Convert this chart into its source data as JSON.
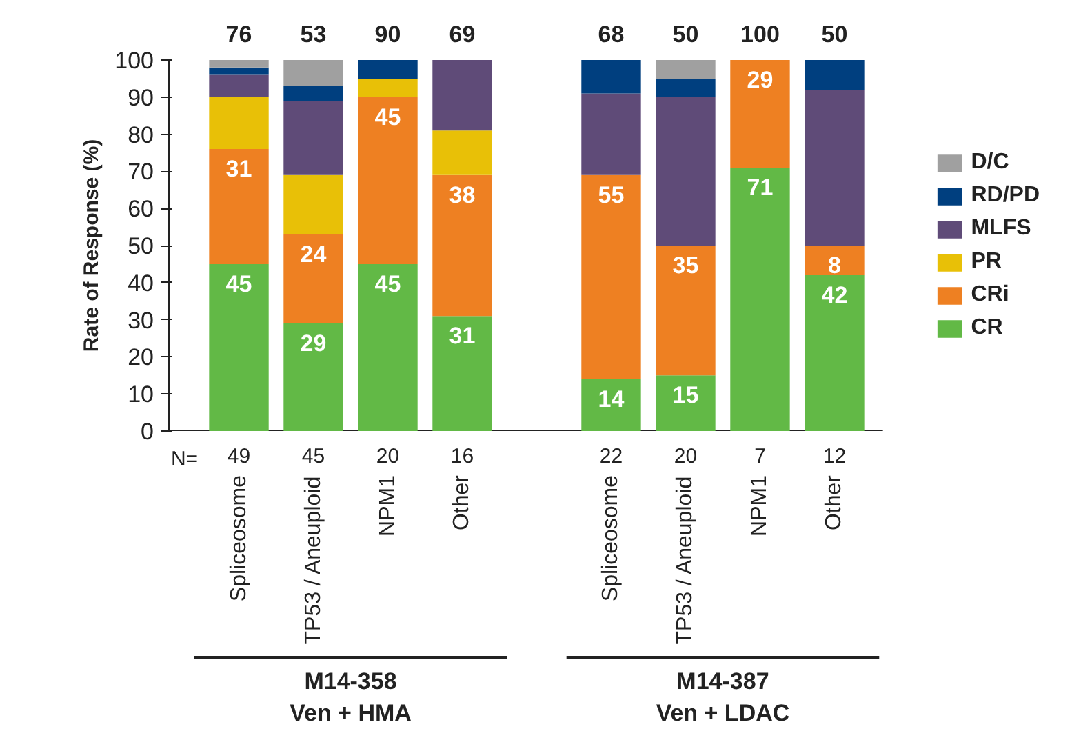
{
  "chart_data": {
    "type": "bar",
    "stacked": true,
    "ylabel": "Rate of Response (%)",
    "categories": [
      "Spliceosome",
      "TP53 / Aneuploid",
      "NPM1",
      "Other",
      null,
      "Spliceosome",
      "TP53 / Aneuploid",
      "NPM1",
      "Other"
    ],
    "series": [
      {
        "name": "CR",
        "color": "#62b946",
        "values": [
          45,
          29,
          45,
          31,
          null,
          14,
          15,
          71,
          42
        ],
        "value_labels": [
          "45",
          "29",
          "45",
          "31",
          null,
          "14",
          "15",
          "71",
          "42"
        ]
      },
      {
        "name": "CRi",
        "color": "#ee8022",
        "values": [
          31,
          24,
          45,
          38,
          null,
          55,
          35,
          29,
          8
        ],
        "value_labels": [
          "31",
          "24",
          "45",
          "38",
          null,
          "55",
          "35",
          "29",
          "8"
        ]
      },
      {
        "name": "PR",
        "color": "#e8c007",
        "values": [
          14,
          16,
          5,
          12,
          null,
          0,
          0,
          0,
          0
        ]
      },
      {
        "name": "MLFS",
        "color": "#5f4b78",
        "values": [
          6,
          20,
          0,
          19,
          null,
          22,
          40,
          0,
          42
        ]
      },
      {
        "name": "RD/PD",
        "color": "#003f7f",
        "values": [
          2,
          4,
          5,
          0,
          null,
          9,
          5,
          0,
          8
        ]
      },
      {
        "name": "D/C",
        "color": "#a0a0a0",
        "values": [
          2,
          7,
          0,
          0,
          null,
          0,
          5,
          0,
          0
        ]
      }
    ],
    "ylim": [
      0,
      100
    ],
    "yticks": [
      0,
      10,
      20,
      30,
      40,
      50,
      60,
      70,
      80,
      90,
      100
    ],
    "legend": "right",
    "annotations": [
      "N=",
      "49",
      "45",
      "20",
      "16",
      null,
      "22",
      "20",
      "7",
      "12",
      "76",
      "53",
      "90",
      "69",
      null,
      "68",
      "50",
      "100",
      "50",
      "M14-358\nVen + HMA",
      "M14-387\nVen + LDAC"
    ]
  }
}
